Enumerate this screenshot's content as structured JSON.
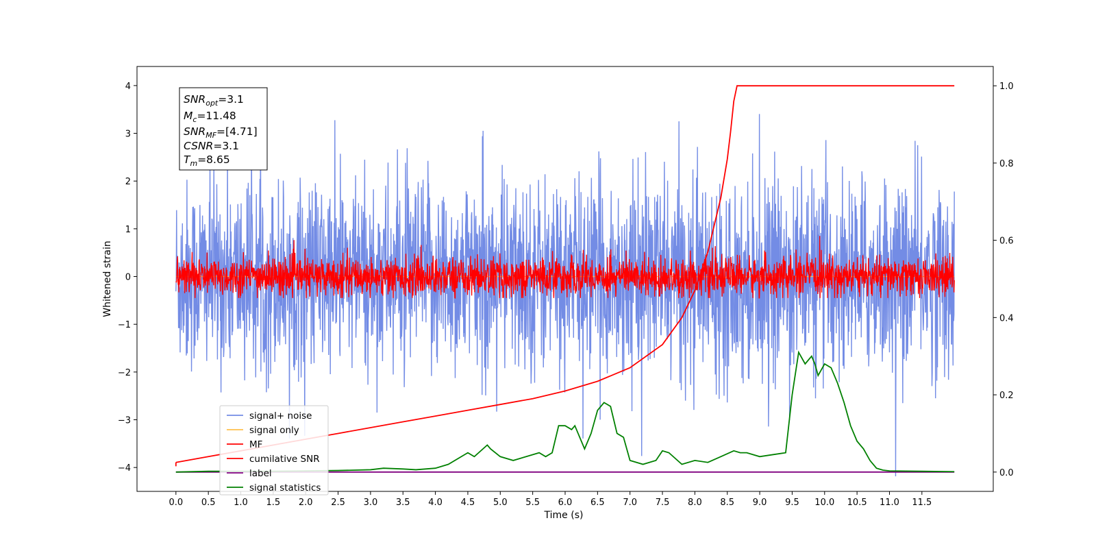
{
  "chart_data": {
    "type": "line",
    "xlabel": "Time (s)",
    "ylabel": "Whitened strain",
    "xlim": [
      -0.6,
      12.6
    ],
    "ylim": [
      -4.5,
      4.4
    ],
    "y2lim": [
      -0.05,
      1.05
    ],
    "x_ticks": [
      "0.0",
      "0.5",
      "1.0",
      "1.5",
      "2.0",
      "2.5",
      "3.0",
      "3.5",
      "4.0",
      "4.5",
      "5.0",
      "5.5",
      "6.0",
      "6.5",
      "7.0",
      "7.5",
      "8.0",
      "8.5",
      "9.0",
      "9.5",
      "10.0",
      "10.5",
      "11.0",
      "11.5"
    ],
    "y_ticks": [
      "4",
      "3",
      "2",
      "1",
      "0",
      "−1",
      "−2",
      "−3",
      "−4"
    ],
    "y2_ticks": [
      "1.0",
      "0.8",
      "0.6",
      "0.4",
      "0.2",
      "0.0"
    ],
    "grid": false,
    "legend_position": "lower-left",
    "stats_box": {
      "snr_opt": {
        "base": "SNR",
        "sub": "opt",
        "value": "=3.1"
      },
      "mc": {
        "base": "M",
        "sub": "c",
        "value": "=11.48"
      },
      "snr_mf": {
        "base": "SNR",
        "sub": "MF",
        "value": "=[4.71]"
      },
      "csnr": {
        "base": "CSNR",
        "sub": "",
        "value": "=3.1"
      },
      "tm": {
        "base": "T",
        "sub": "m",
        "value": "=8.65"
      }
    },
    "series": [
      {
        "name": "signal+ noise",
        "color": "#5b78e0",
        "axis": "left",
        "kind": "noise",
        "std": 1.0,
        "description_values": {
          "t_start": 0.0,
          "t_end": 12.0
        }
      },
      {
        "name": "signal only",
        "color": "#ffc04d",
        "axis": "left",
        "kind": "signal",
        "values_near_zero": true
      },
      {
        "name": "MF",
        "color": "#ff0000",
        "axis": "left",
        "kind": "mf_noise",
        "std": 0.2
      },
      {
        "name": "cumilative SNR",
        "color": "#ff0000",
        "axis": "right",
        "x": [
          0.0,
          0.5,
          1.0,
          1.5,
          2.0,
          2.5,
          3.0,
          3.5,
          4.0,
          4.5,
          5.0,
          5.5,
          6.0,
          6.5,
          7.0,
          7.5,
          7.8,
          8.0,
          8.2,
          8.4,
          8.5,
          8.55,
          8.6,
          8.65,
          9.0,
          10.0,
          11.0,
          12.0
        ],
        "values": [
          0.025,
          0.04,
          0.055,
          0.07,
          0.085,
          0.1,
          0.115,
          0.13,
          0.145,
          0.16,
          0.175,
          0.19,
          0.21,
          0.235,
          0.27,
          0.33,
          0.4,
          0.47,
          0.57,
          0.71,
          0.81,
          0.88,
          0.96,
          1.0,
          1.0,
          1.0,
          1.0,
          1.0
        ]
      },
      {
        "name": "label",
        "color": "#800080",
        "axis": "right",
        "x": [
          0.0,
          12.0
        ],
        "values": [
          0.0,
          0.0
        ]
      },
      {
        "name": "signal statistics",
        "color": "#008000",
        "axis": "right",
        "x": [
          0.0,
          0.5,
          1.0,
          1.5,
          2.0,
          2.5,
          3.0,
          3.2,
          3.5,
          3.7,
          4.0,
          4.2,
          4.4,
          4.5,
          4.6,
          4.8,
          4.85,
          5.0,
          5.2,
          5.4,
          5.6,
          5.7,
          5.8,
          5.9,
          6.0,
          6.1,
          6.15,
          6.2,
          6.3,
          6.4,
          6.5,
          6.6,
          6.7,
          6.8,
          6.9,
          7.0,
          7.2,
          7.4,
          7.5,
          7.6,
          7.8,
          8.0,
          8.2,
          8.4,
          8.6,
          8.7,
          8.8,
          9.0,
          9.2,
          9.4,
          9.5,
          9.6,
          9.7,
          9.8,
          9.85,
          9.9,
          10.0,
          10.1,
          10.2,
          10.3,
          10.4,
          10.5,
          10.6,
          10.7,
          10.8,
          10.9,
          11.0,
          11.5,
          12.0
        ],
        "values": [
          0.0,
          0.002,
          0.002,
          0.002,
          0.003,
          0.004,
          0.006,
          0.01,
          0.008,
          0.006,
          0.01,
          0.02,
          0.04,
          0.05,
          0.04,
          0.07,
          0.06,
          0.04,
          0.03,
          0.04,
          0.05,
          0.04,
          0.05,
          0.12,
          0.12,
          0.11,
          0.12,
          0.1,
          0.06,
          0.1,
          0.16,
          0.18,
          0.17,
          0.1,
          0.09,
          0.03,
          0.02,
          0.03,
          0.055,
          0.05,
          0.02,
          0.03,
          0.025,
          0.04,
          0.055,
          0.05,
          0.05,
          0.04,
          0.045,
          0.05,
          0.2,
          0.31,
          0.28,
          0.3,
          0.28,
          0.25,
          0.28,
          0.27,
          0.23,
          0.18,
          0.12,
          0.08,
          0.06,
          0.03,
          0.01,
          0.005,
          0.003,
          0.002,
          0.001
        ]
      }
    ]
  }
}
